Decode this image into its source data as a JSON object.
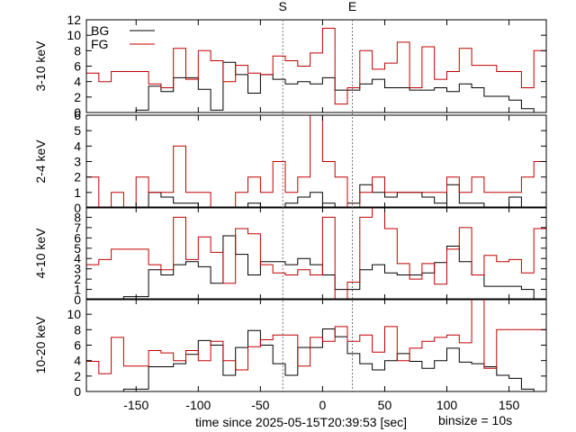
{
  "chart_data": {
    "type": "line",
    "step": true,
    "title": "",
    "xlabel": "time since 2025-05-15T20:39:53 [sec]",
    "binsize_note": "binsize = 10s",
    "xlim": [
      -190,
      180
    ],
    "x_ticks": [
      -150,
      -100,
      -50,
      0,
      50,
      100,
      150
    ],
    "x_tick_labels": [
      "-150",
      "-100",
      "-50",
      "0",
      "50",
      "100",
      "150"
    ],
    "bin_edges": [
      -190,
      -180,
      -170,
      -160,
      -150,
      -140,
      -130,
      -120,
      -110,
      -100,
      -90,
      -80,
      -70,
      -60,
      -50,
      -40,
      -30,
      -20,
      -10,
      0,
      10,
      20,
      30,
      40,
      50,
      60,
      70,
      80,
      90,
      100,
      110,
      120,
      130,
      140,
      150,
      160,
      170,
      180
    ],
    "markers": [
      {
        "label": "S",
        "x": -32
      },
      {
        "label": "E",
        "x": 24
      }
    ],
    "legend": {
      "position": "top-left",
      "entries": [
        "BG",
        "FG"
      ]
    },
    "colors": {
      "BG": "#000000",
      "FG": "#c00000"
    },
    "panels": [
      {
        "ylabel": "3-10 keV",
        "ylim": [
          0,
          12
        ],
        "y_ticks": [
          0,
          2,
          4,
          6,
          8,
          10,
          12
        ],
        "y_tick_labels": [
          "0",
          "2",
          "4",
          "6",
          "8",
          "10",
          "12"
        ],
        "series": [
          {
            "name": "BG",
            "values": [
              0,
              0,
              0,
              0,
              0.3,
              3.4,
              2.7,
              4.5,
              4.5,
              3.0,
              0.3,
              6.5,
              4.9,
              2.5,
              4.9,
              4.3,
              3.7,
              4.0,
              3.7,
              4.5,
              2.9,
              2.9,
              3.7,
              4.3,
              3.2,
              3.2,
              2.9,
              2.9,
              3.2,
              2.7,
              3.7,
              3.2,
              2.1,
              2.1,
              1.6,
              0.5,
              0
            ]
          },
          {
            "name": "FG",
            "values": [
              5.1,
              4.0,
              5.3,
              5.3,
              5.3,
              3.7,
              3.2,
              8.3,
              4.3,
              8.0,
              6.7,
              4.0,
              6.1,
              5.1,
              4.9,
              7.3,
              6.7,
              6.0,
              7.7,
              10.9,
              1.1,
              3.2,
              8.0,
              5.6,
              6.4,
              9.1,
              3.2,
              8.5,
              4.3,
              5.3,
              8.3,
              6.1,
              6.1,
              5.3,
              5.3,
              3.2,
              8.0
            ]
          }
        ]
      },
      {
        "ylabel": "2-4 keV",
        "ylim": [
          0,
          6
        ],
        "y_ticks": [
          0,
          1,
          2,
          3,
          4,
          5,
          6
        ],
        "y_tick_labels": [
          "0",
          "1",
          "2",
          "3",
          "4",
          "5",
          "6"
        ],
        "series": [
          {
            "name": "BG",
            "values": [
              0,
              0,
              0,
              0,
              0,
              1.0,
              0.7,
              0.3,
              0.3,
              0,
              0,
              0,
              0,
              0.3,
              0,
              0,
              0.3,
              0.7,
              1.0,
              0.3,
              0,
              0.3,
              1.5,
              1.0,
              0.7,
              1.0,
              1.0,
              0.7,
              0.3,
              1.5,
              0.3,
              0.3,
              0,
              0,
              0.7,
              0,
              0
            ]
          },
          {
            "name": "FG",
            "values": [
              2.0,
              0,
              1.0,
              0,
              2.0,
              1.0,
              1.0,
              4.0,
              1.0,
              1.0,
              0,
              0,
              1.0,
              2.0,
              1.0,
              3.0,
              1.0,
              2.0,
              6.0,
              3.0,
              2.0,
              0,
              1.0,
              2.0,
              1.0,
              1.0,
              1.0,
              1.0,
              1.0,
              2.0,
              1.0,
              2.0,
              1.0,
              1.0,
              1.0,
              2.0,
              3.0
            ]
          }
        ]
      },
      {
        "ylabel": "4-10 keV",
        "ylim": [
          0,
          9
        ],
        "y_ticks": [
          0,
          1,
          2,
          3,
          4,
          5,
          6,
          7,
          8
        ],
        "y_tick_labels": [
          "0",
          "1",
          "2",
          "3",
          "4",
          "5",
          "6",
          "7",
          "8"
        ],
        "series": [
          {
            "name": "BG",
            "values": [
              0,
              0,
              0,
              0.3,
              0.3,
              2.9,
              2.4,
              3.4,
              3.7,
              3.2,
              1.6,
              6.2,
              4.4,
              2.4,
              3.7,
              3.7,
              3.4,
              4.0,
              3.4,
              2.4,
              1.0,
              1.0,
              2.9,
              3.4,
              2.6,
              2.4,
              2.4,
              2.6,
              3.6,
              5.2,
              3.7,
              2.4,
              1.3,
              1.3,
              1.3,
              1.0,
              0
            ]
          },
          {
            "name": "FG",
            "values": [
              3.4,
              3.9,
              4.9,
              4.9,
              4.9,
              3.4,
              2.9,
              8.0,
              3.9,
              6.1,
              4.6,
              1.6,
              6.9,
              6.4,
              3.4,
              2.6,
              2.4,
              2.9,
              2.4,
              8.0,
              0,
              1.7,
              8.0,
              9.0,
              6.9,
              3.5,
              2.0,
              3.5,
              1.5,
              4.9,
              7.0,
              2.4,
              4.3,
              3.7,
              3.9,
              2.6,
              6.9
            ]
          }
        ]
      },
      {
        "ylabel": "10-20 keV",
        "ylim": [
          0,
          12
        ],
        "y_ticks": [
          0,
          2,
          4,
          6,
          8,
          10
        ],
        "y_tick_labels": [
          "0",
          "2",
          "4",
          "6",
          "8",
          "10"
        ],
        "series": [
          {
            "name": "BG",
            "values": [
              0,
              0,
              0,
              0.3,
              0.3,
              3.2,
              3.2,
              3.6,
              4.8,
              6.6,
              6.0,
              2.1,
              5.7,
              7.9,
              6.0,
              3.6,
              2.1,
              5.7,
              5.7,
              8.1,
              7.1,
              4.9,
              3.6,
              2.8,
              4.0,
              4.9,
              3.9,
              3.0,
              4.0,
              5.6,
              3.8,
              3.6,
              3.2,
              2.1,
              1.7,
              0.3,
              0
            ]
          },
          {
            "name": "FG",
            "values": [
              3.9,
              2.3,
              7.0,
              3.3,
              3.3,
              5.3,
              5.0,
              4.0,
              5.3,
              4.0,
              6.5,
              4.0,
              2.8,
              5.8,
              6.7,
              7.3,
              7.3,
              3.3,
              7.0,
              6.5,
              8.4,
              6.5,
              7.3,
              5.1,
              8.4,
              4.0,
              5.6,
              6.5,
              7.0,
              7.3,
              6.3,
              12.0,
              3.0,
              8.0,
              8.0,
              8.0,
              8.0
            ]
          }
        ]
      }
    ]
  }
}
